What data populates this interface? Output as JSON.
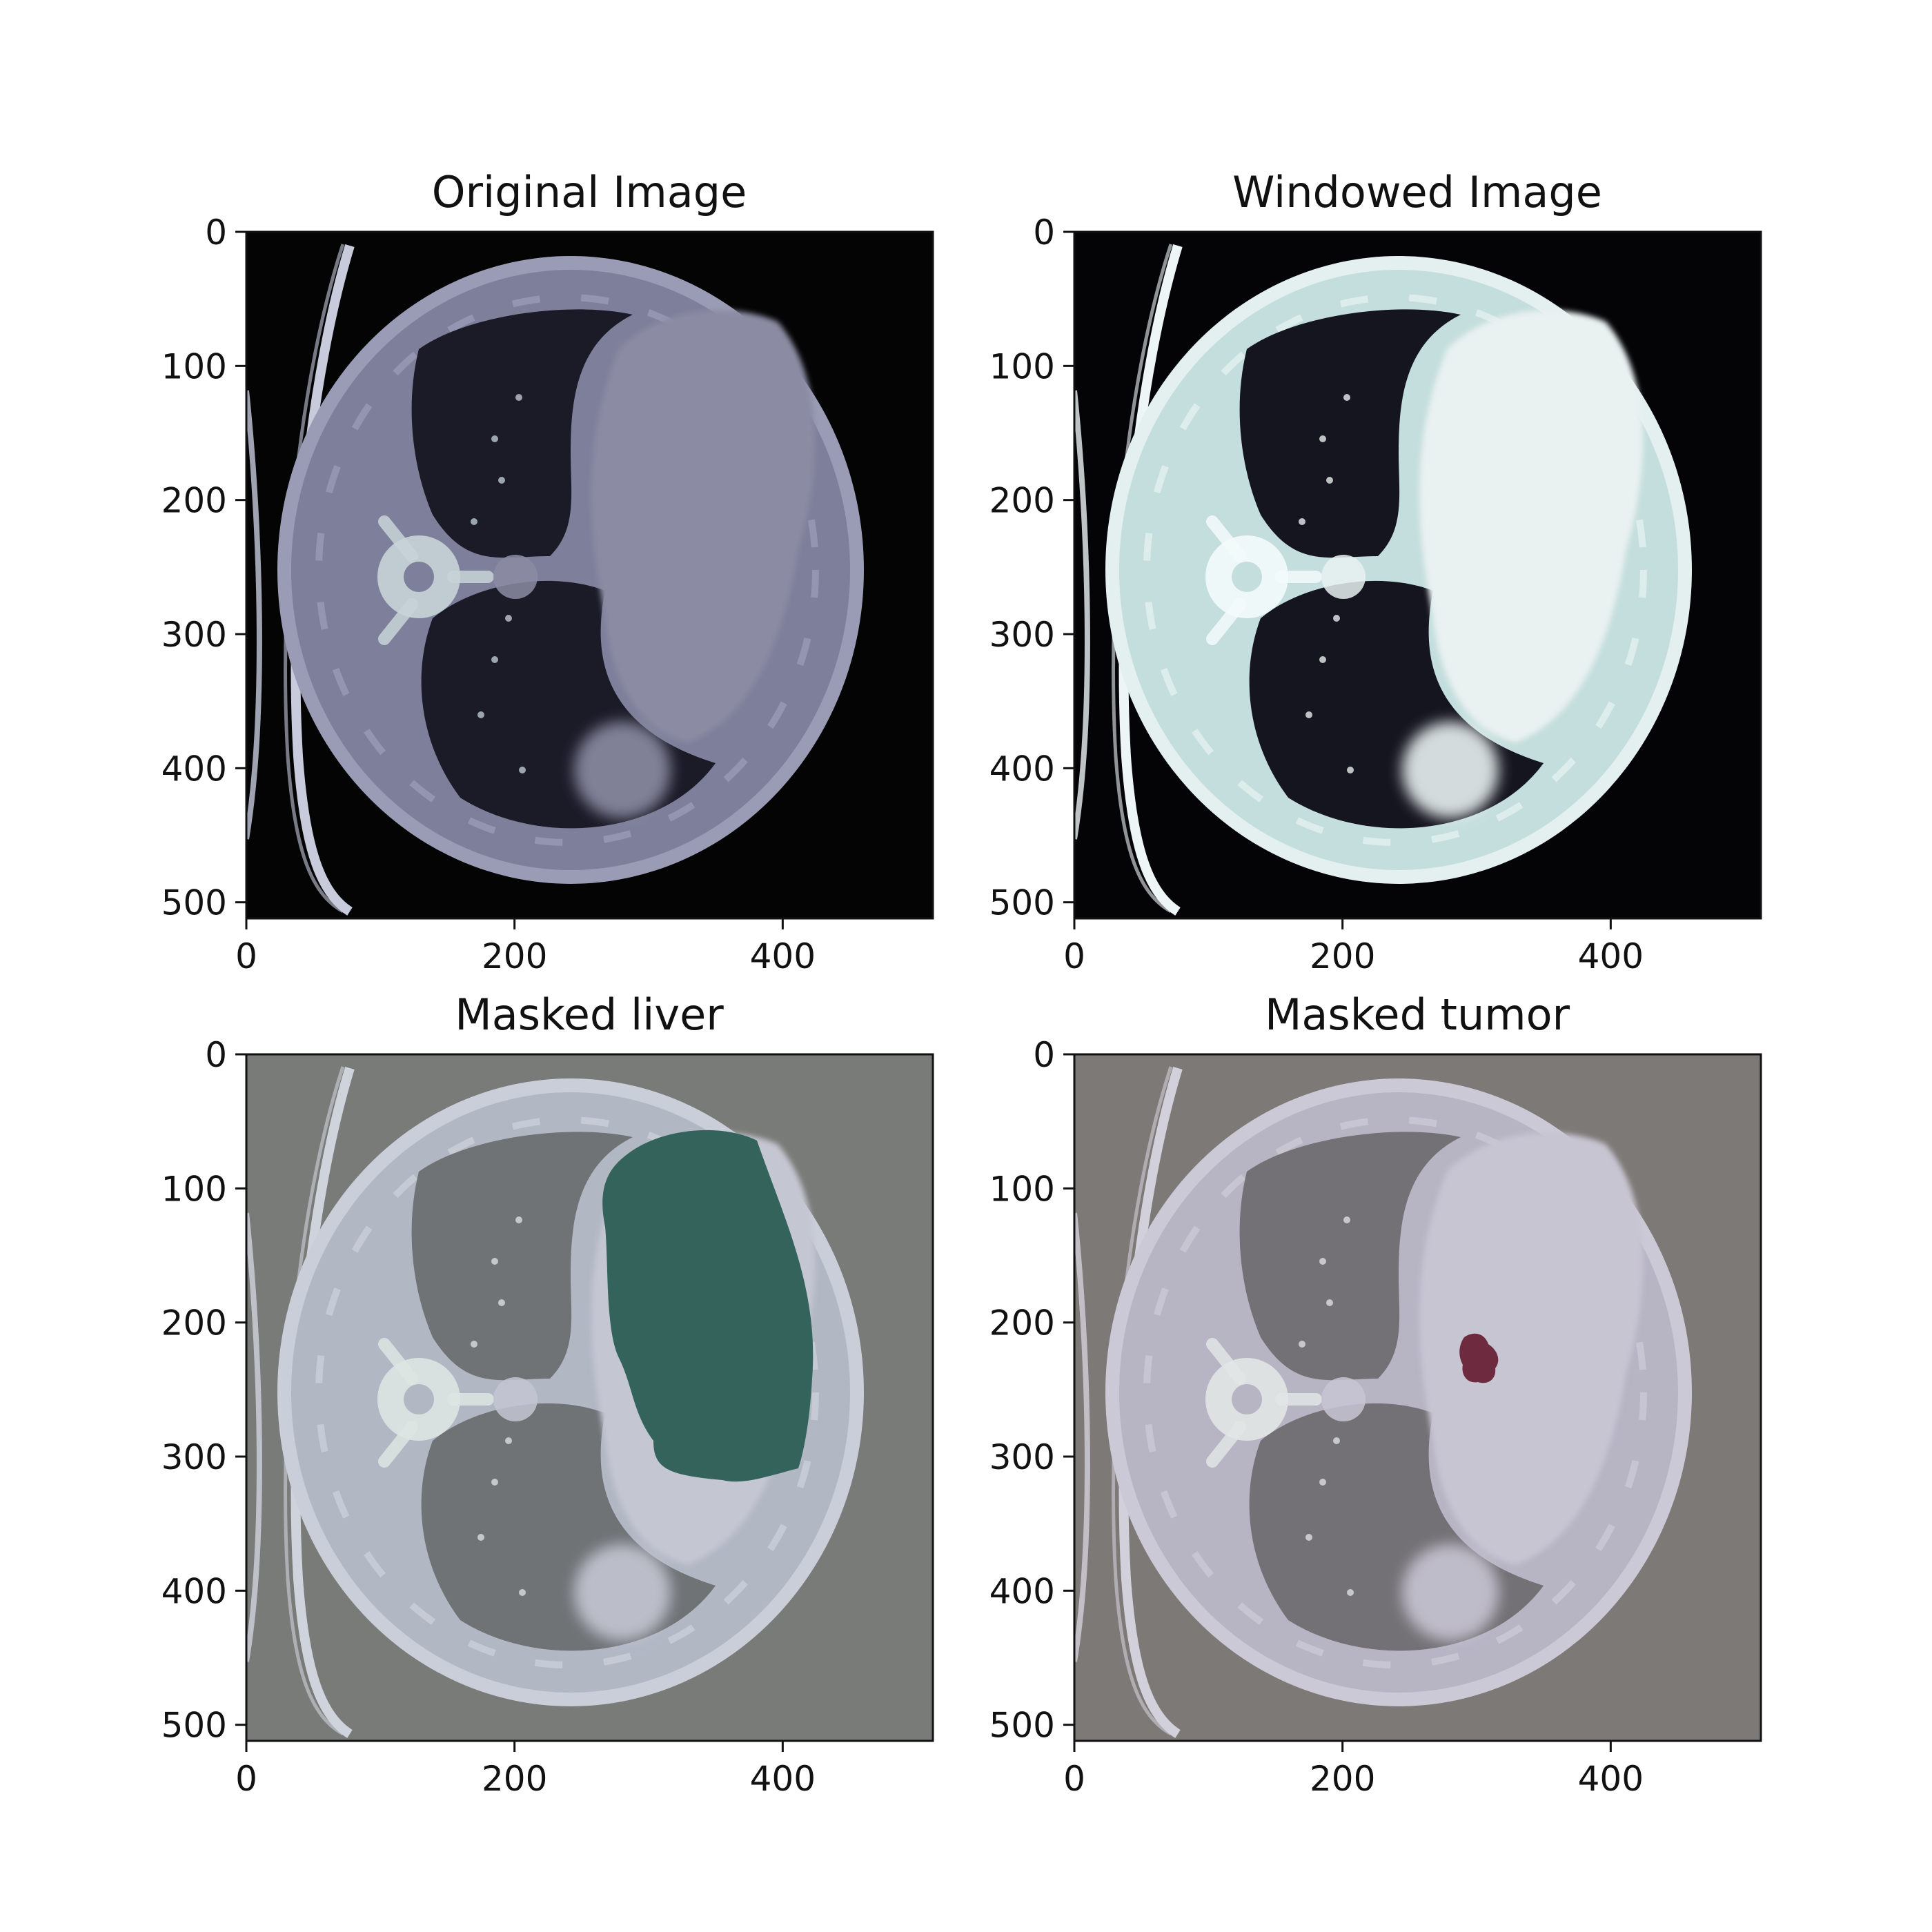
{
  "panels": [
    {
      "title": "Original Image",
      "x_ticks": [
        "0",
        "200",
        "400"
      ],
      "y_ticks": [
        "0",
        "100",
        "200",
        "300",
        "400",
        "500"
      ],
      "theme": {
        "bg": "#040405",
        "body": "#7e7f9a",
        "body_edge": "#9a9cb6",
        "lung": "#1b1b28",
        "organ": "#8b8ca3",
        "bone": "#c8d4d8",
        "ring": "#c7cbdc",
        "overlay": "none"
      }
    },
    {
      "title": "Windowed Image",
      "x_ticks": [
        "0",
        "200",
        "400"
      ],
      "y_ticks": [
        "0",
        "100",
        "200",
        "300",
        "400",
        "500"
      ],
      "theme": {
        "bg": "#040406",
        "body": "#c4dedd",
        "body_edge": "#e3f0ef",
        "lung": "#15151f",
        "organ": "#e9f1f1",
        "bone": "#f4fbfb",
        "ring": "#eef5f6",
        "overlay": "none"
      }
    },
    {
      "title": "Masked liver",
      "x_ticks": [
        "0",
        "200",
        "400"
      ],
      "y_ticks": [
        "0",
        "100",
        "200",
        "300",
        "400",
        "500"
      ],
      "theme": {
        "bg": "#797b78",
        "body": "#b2b7c4",
        "body_edge": "#c9ced8",
        "lung": "#6f7376",
        "organ": "#c4c6d2",
        "bone": "#dde6e3",
        "ring": "#cfd4dc",
        "overlay": "liver"
      },
      "overlay_color": "#33635a"
    },
    {
      "title": "Masked tumor",
      "x_ticks": [
        "0",
        "200",
        "400"
      ],
      "y_ticks": [
        "0",
        "100",
        "200",
        "300",
        "400",
        "500"
      ],
      "theme": {
        "bg": "#7d7976",
        "body": "#b7b4c4",
        "body_edge": "#ccc9d6",
        "lung": "#737175",
        "organ": "#c8c5d3",
        "bone": "#e2e6e6",
        "ring": "#d2d0da",
        "overlay": "tumor"
      },
      "overlay_color": "#6e2a3e"
    }
  ]
}
